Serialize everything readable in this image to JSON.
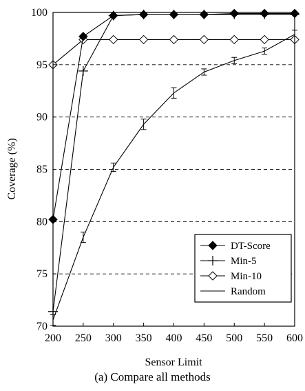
{
  "caption": "(a) Compare all methods",
  "chart_data": {
    "type": "line",
    "xlabel": "Sensor Limit",
    "ylabel": "Coverage (%)",
    "x": [
      200,
      250,
      300,
      350,
      400,
      450,
      500,
      550,
      600
    ],
    "xlim": [
      200,
      600
    ],
    "ylim": [
      70,
      100
    ],
    "yticks": [
      70,
      75,
      80,
      85,
      90,
      95,
      100
    ],
    "grid": "horizontal-dashed",
    "legend_position": "bottom-right",
    "series": [
      {
        "name": "DT-Score",
        "marker": "filled-diamond",
        "values": [
          80.2,
          97.7,
          99.7,
          99.8,
          99.8,
          99.8,
          99.9,
          99.9,
          99.9
        ]
      },
      {
        "name": "Min-5",
        "marker": "plus",
        "values": [
          71.4,
          94.4,
          99.7,
          99.8,
          99.8,
          99.8,
          99.8,
          99.8,
          99.8
        ]
      },
      {
        "name": "Min-10",
        "marker": "open-diamond",
        "values": [
          95.0,
          97.4,
          97.4,
          97.4,
          97.4,
          97.4,
          97.4,
          97.4,
          97.4
        ]
      },
      {
        "name": "Random",
        "marker": "none",
        "error_bars": true,
        "values": [
          70.6,
          78.5,
          85.2,
          89.3,
          92.3,
          94.3,
          95.4,
          96.3,
          97.9
        ],
        "errors": [
          0.5,
          0.5,
          0.4,
          0.5,
          0.5,
          0.3,
          0.3,
          0.3,
          0.4
        ]
      }
    ]
  }
}
